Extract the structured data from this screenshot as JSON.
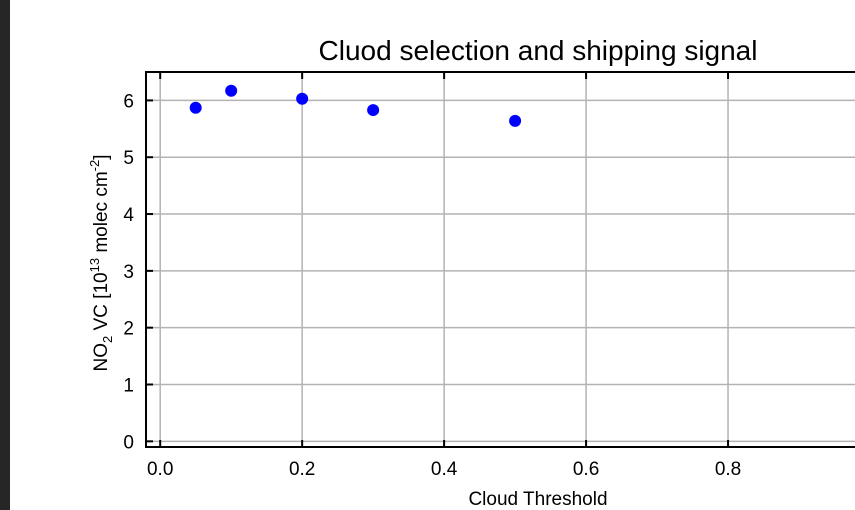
{
  "chart_data": {
    "type": "scatter",
    "title": "Cluod selection and shipping signal",
    "xlabel": "Cloud Threshold",
    "ylabel": {
      "prefix": "NO",
      "sub": "2",
      "mid": " VC  [10",
      "sup1": "13",
      "mid2": " molec cm",
      "sup2": "-2",
      "suffix": "]"
    },
    "xlim": [
      -0.02,
      1.0
    ],
    "ylim": [
      -0.1,
      6.5
    ],
    "x_ticks": [
      0.0,
      0.2,
      0.4,
      0.6,
      0.8
    ],
    "x_tick_labels": [
      "0.0",
      "0.2",
      "0.4",
      "0.6",
      "0.8"
    ],
    "y_ticks": [
      0,
      1,
      2,
      3,
      4,
      5,
      6
    ],
    "y_tick_labels": [
      "0",
      "1",
      "2",
      "3",
      "4",
      "5",
      "6"
    ],
    "grid": true,
    "marker_color": "#0000ff",
    "x": [
      0.05,
      0.1,
      0.2,
      0.3,
      0.5
    ],
    "y": [
      5.87,
      6.17,
      6.03,
      5.83,
      5.64
    ]
  }
}
